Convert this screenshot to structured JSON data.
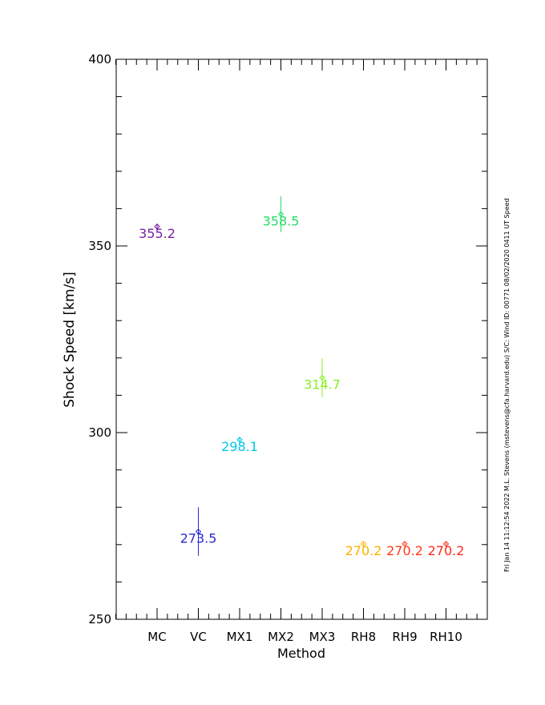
{
  "chart_data": {
    "type": "scatter",
    "xlabel": "Method",
    "ylabel": "Shock Speed [km/s]",
    "ylim": [
      250,
      400
    ],
    "yticks": [
      250,
      300,
      350,
      400
    ],
    "categories": [
      "MC",
      "VC",
      "MX1",
      "MX2",
      "MX3",
      "RH8",
      "RH9",
      "RH10"
    ],
    "points": [
      {
        "category": "MC",
        "value": 355.2,
        "err": 0.8,
        "label": "355.2",
        "color": "#7a1fa2"
      },
      {
        "category": "VC",
        "value": 273.5,
        "err": 6.5,
        "label": "273.5",
        "color": "#2a2ad0"
      },
      {
        "category": "MX1",
        "value": 298.1,
        "err": 0.5,
        "label": "298.1",
        "color": "#00c8e8"
      },
      {
        "category": "MX2",
        "value": 358.5,
        "err": 4.8,
        "label": "358.5",
        "color": "#22dd66"
      },
      {
        "category": "MX3",
        "value": 314.7,
        "err": 5.2,
        "label": "314.7",
        "color": "#88ee22"
      },
      {
        "category": "RH8",
        "value": 270.2,
        "err": 0.3,
        "label": "270.2",
        "color": "#ffb000"
      },
      {
        "category": "RH9",
        "value": 270.2,
        "err": 0.3,
        "label": "270.2",
        "color": "#ff3a1a"
      },
      {
        "category": "RH10",
        "value": 270.2,
        "err": 0.3,
        "label": "270.2",
        "color": "#ff2a1a"
      }
    ],
    "grid": false
  },
  "sidebar_text": "Fri Jan 14 11:12:54 2022  M.L. Stevens (mstevens@cfa.harvard.edu)  S/C: Wind ID: 00771 08/02/2020  0411 UT Speed"
}
